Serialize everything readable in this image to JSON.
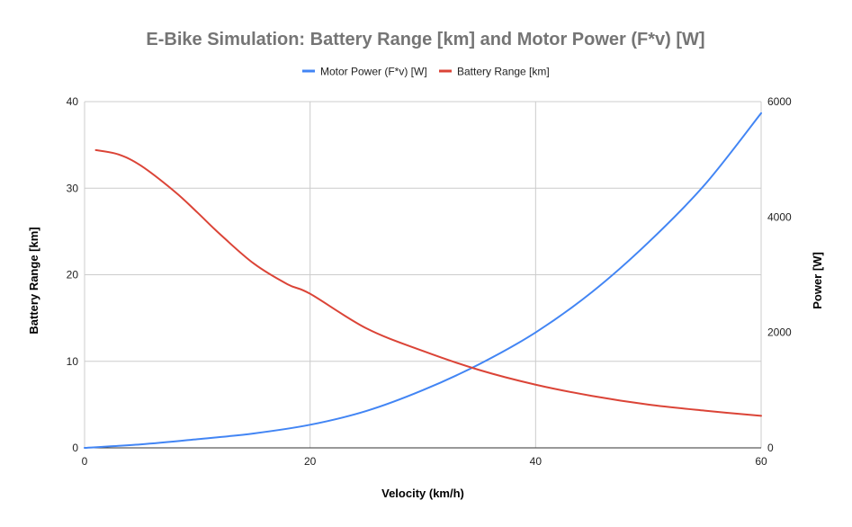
{
  "chart_data": {
    "type": "line",
    "title": "E-Bike Simulation: Battery Range [km] and Motor Power (F*v) [W]",
    "xlabel": "Velocity (km/h)",
    "ylabel_left": "Battery Range [km]",
    "ylabel_right": "Power [W]",
    "xlim": [
      0,
      60
    ],
    "ylim_left": [
      0,
      40
    ],
    "ylim_right": [
      0,
      6000
    ],
    "x_ticks": [
      "0",
      "20",
      "40",
      "60"
    ],
    "y_left_ticks": [
      "0",
      "10",
      "20",
      "30",
      "40"
    ],
    "y_right_ticks": [
      "0",
      "2000",
      "4000",
      "6000"
    ],
    "grid": true,
    "legend_position": "top",
    "series": [
      {
        "name": "Motor Power (F*v) [W]",
        "color": "#4285f4",
        "axis": "right",
        "x": [
          0,
          5,
          10,
          15,
          20,
          25,
          30,
          35,
          40,
          45,
          50,
          55,
          60
        ],
        "values": [
          0,
          60,
          150,
          250,
          400,
          640,
          1000,
          1450,
          2000,
          2700,
          3560,
          4560,
          5800
        ]
      },
      {
        "name": "Battery Range [km]",
        "color": "#db4437",
        "axis": "left",
        "x": [
          1,
          3,
          5,
          8,
          10,
          12,
          15,
          18,
          20,
          25,
          30,
          35,
          40,
          45,
          50,
          55,
          60
        ],
        "values": [
          34.4,
          33.9,
          32.6,
          29.6,
          27.2,
          24.7,
          21.3,
          18.9,
          17.8,
          13.8,
          11.2,
          9.0,
          7.3,
          6.0,
          5.0,
          4.3,
          3.7
        ]
      }
    ]
  }
}
